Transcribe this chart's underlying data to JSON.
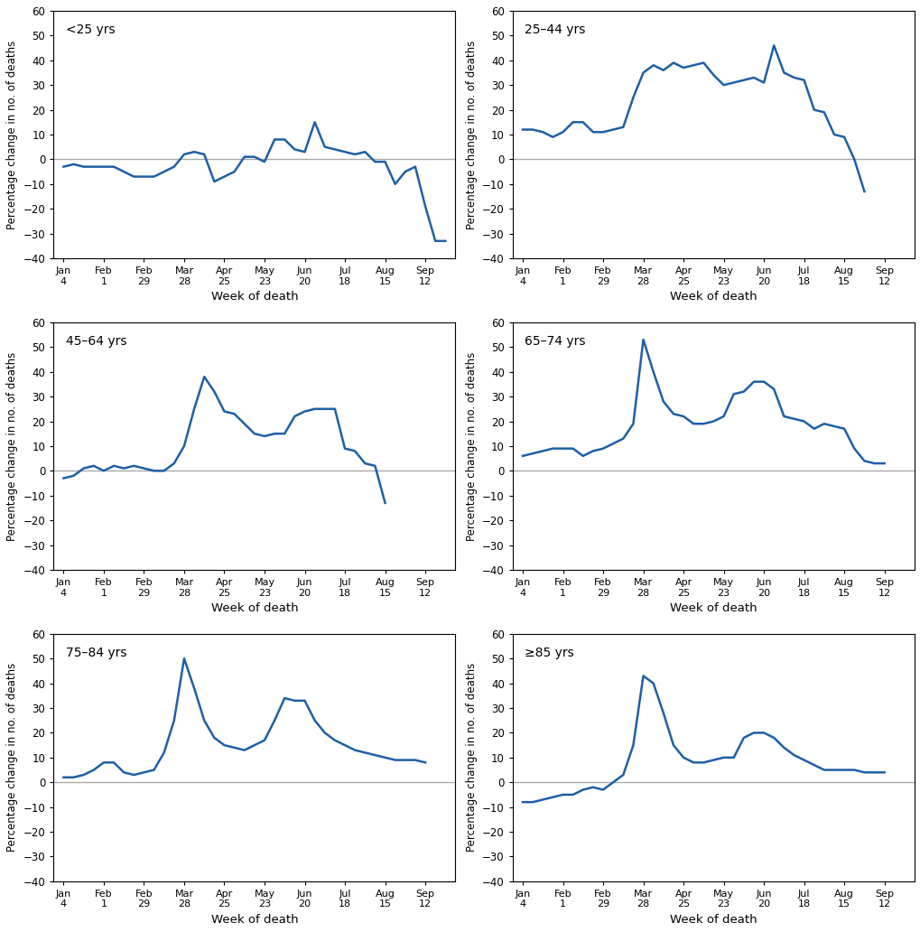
{
  "tick_labels": [
    [
      "Jan",
      "4"
    ],
    [
      "Feb",
      "1"
    ],
    [
      "Feb",
      "29"
    ],
    [
      "Mar",
      "28"
    ],
    [
      "Apr",
      "25"
    ],
    [
      "May",
      "23"
    ],
    [
      "Jun",
      "20"
    ],
    [
      "Jul",
      "18"
    ],
    [
      "Aug",
      "15"
    ],
    [
      "Sep",
      "12"
    ]
  ],
  "tick_weeks": [
    1,
    5,
    9,
    13,
    17,
    21,
    25,
    29,
    33,
    37
  ],
  "panels": [
    {
      "label": "<25 yrs",
      "weeks": [
        1,
        2,
        3,
        4,
        5,
        6,
        7,
        8,
        9,
        10,
        11,
        12,
        13,
        14,
        15,
        16,
        17,
        18,
        19,
        20,
        21,
        22,
        23,
        24,
        25,
        26,
        27,
        28,
        29,
        30,
        31,
        32,
        33,
        34,
        35,
        36,
        37,
        38,
        39
      ],
      "y": [
        -3,
        -2,
        -3,
        -3,
        -3,
        -3,
        -5,
        -7,
        -7,
        -7,
        -5,
        -3,
        2,
        3,
        2,
        -9,
        -7,
        -5,
        1,
        1,
        -1,
        8,
        8,
        4,
        3,
        15,
        5,
        4,
        3,
        2,
        3,
        -1,
        -1,
        -10,
        -5,
        -3,
        -19,
        -33,
        -33
      ]
    },
    {
      "label": "25–44 yrs",
      "weeks": [
        1,
        2,
        3,
        4,
        5,
        6,
        7,
        8,
        9,
        10,
        11,
        12,
        13,
        14,
        15,
        16,
        17,
        18,
        19,
        20,
        21,
        22,
        23,
        24,
        25,
        26,
        27,
        28,
        29,
        30,
        31,
        32,
        33,
        34,
        35
      ],
      "y": [
        12,
        12,
        11,
        9,
        11,
        15,
        15,
        11,
        11,
        12,
        13,
        25,
        35,
        38,
        36,
        39,
        37,
        38,
        39,
        34,
        30,
        31,
        32,
        33,
        31,
        46,
        35,
        33,
        32,
        20,
        19,
        10,
        9,
        0,
        -13
      ]
    },
    {
      "label": "45–64 yrs",
      "weeks": [
        1,
        2,
        3,
        4,
        5,
        6,
        7,
        8,
        9,
        10,
        11,
        12,
        13,
        14,
        15,
        16,
        17,
        18,
        19,
        20,
        21,
        22,
        23,
        24,
        25,
        26,
        27,
        28,
        29,
        30,
        31,
        32,
        33
      ],
      "y": [
        -3,
        -2,
        1,
        2,
        0,
        2,
        1,
        2,
        1,
        0,
        0,
        3,
        10,
        25,
        38,
        32,
        24,
        23,
        19,
        15,
        14,
        15,
        15,
        22,
        24,
        25,
        25,
        25,
        9,
        8,
        3,
        2,
        -13
      ]
    },
    {
      "label": "65–74 yrs",
      "weeks": [
        1,
        2,
        3,
        4,
        5,
        6,
        7,
        8,
        9,
        10,
        11,
        12,
        13,
        14,
        15,
        16,
        17,
        18,
        19,
        20,
        21,
        22,
        23,
        24,
        25,
        26,
        27,
        28,
        29,
        30,
        31,
        32,
        33,
        34,
        35,
        36,
        37
      ],
      "y": [
        6,
        7,
        8,
        9,
        9,
        9,
        6,
        8,
        9,
        11,
        13,
        19,
        53,
        40,
        28,
        23,
        22,
        19,
        19,
        20,
        22,
        31,
        32,
        36,
        36,
        33,
        22,
        21,
        20,
        17,
        19,
        18,
        17,
        9,
        4,
        3,
        3
      ]
    },
    {
      "label": "75–84 yrs",
      "weeks": [
        1,
        2,
        3,
        4,
        5,
        6,
        7,
        8,
        9,
        10,
        11,
        12,
        13,
        14,
        15,
        16,
        17,
        18,
        19,
        20,
        21,
        22,
        23,
        24,
        25,
        26,
        27,
        28,
        29,
        30,
        31,
        32,
        33,
        34,
        35,
        36,
        37
      ],
      "y": [
        2,
        2,
        3,
        5,
        8,
        8,
        4,
        3,
        4,
        5,
        12,
        25,
        50,
        38,
        25,
        18,
        15,
        14,
        13,
        15,
        17,
        25,
        34,
        33,
        33,
        25,
        20,
        17,
        15,
        13,
        12,
        11,
        10,
        9,
        9,
        9,
        8
      ]
    },
    {
      "label": "≥85 yrs",
      "weeks": [
        1,
        2,
        3,
        4,
        5,
        6,
        7,
        8,
        9,
        10,
        11,
        12,
        13,
        14,
        15,
        16,
        17,
        18,
        19,
        20,
        21,
        22,
        23,
        24,
        25,
        26,
        27,
        28,
        29,
        30,
        31,
        32,
        33,
        34,
        35,
        36,
        37
      ],
      "y": [
        -8,
        -8,
        -7,
        -6,
        -5,
        -5,
        -3,
        -2,
        -3,
        0,
        3,
        15,
        43,
        40,
        28,
        15,
        10,
        8,
        8,
        9,
        10,
        10,
        18,
        20,
        20,
        18,
        14,
        11,
        9,
        7,
        5,
        5,
        5,
        5,
        4,
        4,
        4
      ]
    }
  ],
  "ylim": [
    -40,
    60
  ],
  "yticks": [
    -40,
    -30,
    -20,
    -10,
    0,
    10,
    20,
    30,
    40,
    50,
    60
  ],
  "line_color": "#1f5fa6",
  "zero_line_color": "#aaaaaa",
  "ylabel": "Percentage change in no. of deaths",
  "xlabel": "Week of death",
  "fig_width": 10.2,
  "fig_height": 10.32
}
